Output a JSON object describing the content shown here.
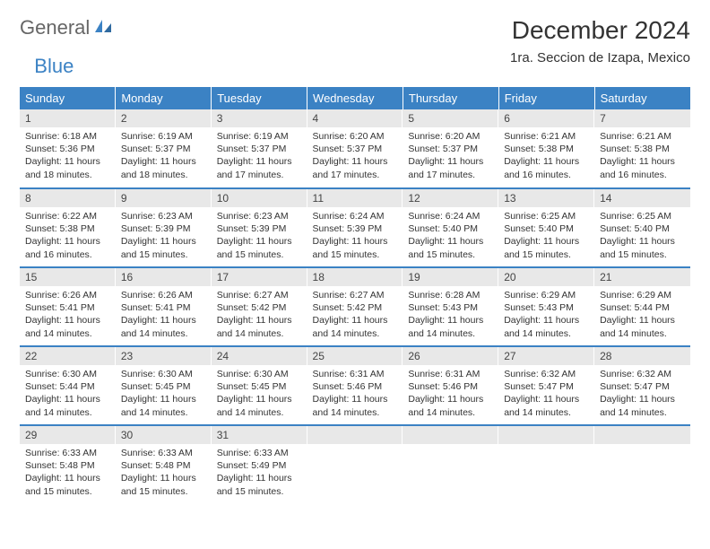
{
  "brand": {
    "general": "General",
    "blue": "Blue"
  },
  "title": "December 2024",
  "location": "1ra. Seccion de Izapa, Mexico",
  "colors": {
    "header_bg": "#3b82c4",
    "header_text": "#ffffff",
    "daynum_bg": "#e8e8e8",
    "text": "#333333",
    "rule": "#3b82c4",
    "page_bg": "#ffffff"
  },
  "fonts": {
    "title_size_pt": 21,
    "location_size_pt": 11,
    "dow_size_pt": 10,
    "daynum_size_pt": 9,
    "body_size_pt": 8
  },
  "dow": [
    "Sunday",
    "Monday",
    "Tuesday",
    "Wednesday",
    "Thursday",
    "Friday",
    "Saturday"
  ],
  "weeks": [
    [
      {
        "num": "1",
        "sunrise": "Sunrise: 6:18 AM",
        "sunset": "Sunset: 5:36 PM",
        "daylight": "Daylight: 11 hours and 18 minutes."
      },
      {
        "num": "2",
        "sunrise": "Sunrise: 6:19 AM",
        "sunset": "Sunset: 5:37 PM",
        "daylight": "Daylight: 11 hours and 18 minutes."
      },
      {
        "num": "3",
        "sunrise": "Sunrise: 6:19 AM",
        "sunset": "Sunset: 5:37 PM",
        "daylight": "Daylight: 11 hours and 17 minutes."
      },
      {
        "num": "4",
        "sunrise": "Sunrise: 6:20 AM",
        "sunset": "Sunset: 5:37 PM",
        "daylight": "Daylight: 11 hours and 17 minutes."
      },
      {
        "num": "5",
        "sunrise": "Sunrise: 6:20 AM",
        "sunset": "Sunset: 5:37 PM",
        "daylight": "Daylight: 11 hours and 17 minutes."
      },
      {
        "num": "6",
        "sunrise": "Sunrise: 6:21 AM",
        "sunset": "Sunset: 5:38 PM",
        "daylight": "Daylight: 11 hours and 16 minutes."
      },
      {
        "num": "7",
        "sunrise": "Sunrise: 6:21 AM",
        "sunset": "Sunset: 5:38 PM",
        "daylight": "Daylight: 11 hours and 16 minutes."
      }
    ],
    [
      {
        "num": "8",
        "sunrise": "Sunrise: 6:22 AM",
        "sunset": "Sunset: 5:38 PM",
        "daylight": "Daylight: 11 hours and 16 minutes."
      },
      {
        "num": "9",
        "sunrise": "Sunrise: 6:23 AM",
        "sunset": "Sunset: 5:39 PM",
        "daylight": "Daylight: 11 hours and 15 minutes."
      },
      {
        "num": "10",
        "sunrise": "Sunrise: 6:23 AM",
        "sunset": "Sunset: 5:39 PM",
        "daylight": "Daylight: 11 hours and 15 minutes."
      },
      {
        "num": "11",
        "sunrise": "Sunrise: 6:24 AM",
        "sunset": "Sunset: 5:39 PM",
        "daylight": "Daylight: 11 hours and 15 minutes."
      },
      {
        "num": "12",
        "sunrise": "Sunrise: 6:24 AM",
        "sunset": "Sunset: 5:40 PM",
        "daylight": "Daylight: 11 hours and 15 minutes."
      },
      {
        "num": "13",
        "sunrise": "Sunrise: 6:25 AM",
        "sunset": "Sunset: 5:40 PM",
        "daylight": "Daylight: 11 hours and 15 minutes."
      },
      {
        "num": "14",
        "sunrise": "Sunrise: 6:25 AM",
        "sunset": "Sunset: 5:40 PM",
        "daylight": "Daylight: 11 hours and 15 minutes."
      }
    ],
    [
      {
        "num": "15",
        "sunrise": "Sunrise: 6:26 AM",
        "sunset": "Sunset: 5:41 PM",
        "daylight": "Daylight: 11 hours and 14 minutes."
      },
      {
        "num": "16",
        "sunrise": "Sunrise: 6:26 AM",
        "sunset": "Sunset: 5:41 PM",
        "daylight": "Daylight: 11 hours and 14 minutes."
      },
      {
        "num": "17",
        "sunrise": "Sunrise: 6:27 AM",
        "sunset": "Sunset: 5:42 PM",
        "daylight": "Daylight: 11 hours and 14 minutes."
      },
      {
        "num": "18",
        "sunrise": "Sunrise: 6:27 AM",
        "sunset": "Sunset: 5:42 PM",
        "daylight": "Daylight: 11 hours and 14 minutes."
      },
      {
        "num": "19",
        "sunrise": "Sunrise: 6:28 AM",
        "sunset": "Sunset: 5:43 PM",
        "daylight": "Daylight: 11 hours and 14 minutes."
      },
      {
        "num": "20",
        "sunrise": "Sunrise: 6:29 AM",
        "sunset": "Sunset: 5:43 PM",
        "daylight": "Daylight: 11 hours and 14 minutes."
      },
      {
        "num": "21",
        "sunrise": "Sunrise: 6:29 AM",
        "sunset": "Sunset: 5:44 PM",
        "daylight": "Daylight: 11 hours and 14 minutes."
      }
    ],
    [
      {
        "num": "22",
        "sunrise": "Sunrise: 6:30 AM",
        "sunset": "Sunset: 5:44 PM",
        "daylight": "Daylight: 11 hours and 14 minutes."
      },
      {
        "num": "23",
        "sunrise": "Sunrise: 6:30 AM",
        "sunset": "Sunset: 5:45 PM",
        "daylight": "Daylight: 11 hours and 14 minutes."
      },
      {
        "num": "24",
        "sunrise": "Sunrise: 6:30 AM",
        "sunset": "Sunset: 5:45 PM",
        "daylight": "Daylight: 11 hours and 14 minutes."
      },
      {
        "num": "25",
        "sunrise": "Sunrise: 6:31 AM",
        "sunset": "Sunset: 5:46 PM",
        "daylight": "Daylight: 11 hours and 14 minutes."
      },
      {
        "num": "26",
        "sunrise": "Sunrise: 6:31 AM",
        "sunset": "Sunset: 5:46 PM",
        "daylight": "Daylight: 11 hours and 14 minutes."
      },
      {
        "num": "27",
        "sunrise": "Sunrise: 6:32 AM",
        "sunset": "Sunset: 5:47 PM",
        "daylight": "Daylight: 11 hours and 14 minutes."
      },
      {
        "num": "28",
        "sunrise": "Sunrise: 6:32 AM",
        "sunset": "Sunset: 5:47 PM",
        "daylight": "Daylight: 11 hours and 14 minutes."
      }
    ],
    [
      {
        "num": "29",
        "sunrise": "Sunrise: 6:33 AM",
        "sunset": "Sunset: 5:48 PM",
        "daylight": "Daylight: 11 hours and 15 minutes."
      },
      {
        "num": "30",
        "sunrise": "Sunrise: 6:33 AM",
        "sunset": "Sunset: 5:48 PM",
        "daylight": "Daylight: 11 hours and 15 minutes."
      },
      {
        "num": "31",
        "sunrise": "Sunrise: 6:33 AM",
        "sunset": "Sunset: 5:49 PM",
        "daylight": "Daylight: 11 hours and 15 minutes."
      },
      null,
      null,
      null,
      null
    ]
  ]
}
